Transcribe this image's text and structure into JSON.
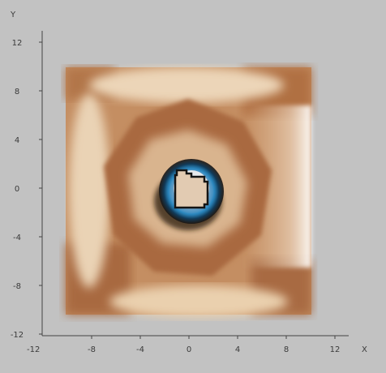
{
  "plot": {
    "x_axis_label": "X",
    "y_axis_label": "Y",
    "x_range": [
      -14,
      14
    ],
    "y_range": [
      -12,
      12
    ],
    "x_ticks": [
      "-8",
      "-4",
      "0",
      "4",
      "8",
      "12"
    ],
    "x_tick_values": [
      -8,
      -4,
      0,
      4,
      8,
      12
    ],
    "y_ticks": [
      "12",
      "8",
      "4",
      "0",
      "-4",
      "-8",
      "-12"
    ],
    "y_tick_values": [
      12,
      8,
      4,
      0,
      -4,
      -8,
      -12
    ],
    "origin_overlap_label": "-12",
    "surface_extent": {
      "x": [
        -10,
        10
      ],
      "y": [
        -10,
        10
      ]
    }
  },
  "colors": {
    "background": "#c2c2c2",
    "axis": "#444444",
    "surface_dark": "#9a5a35",
    "surface_mid": "#c08a5e",
    "surface_light": "#f2e2c8",
    "highlight": "#ffffff",
    "cyan": "#1f8fc4",
    "shadow": "#1a1410"
  }
}
